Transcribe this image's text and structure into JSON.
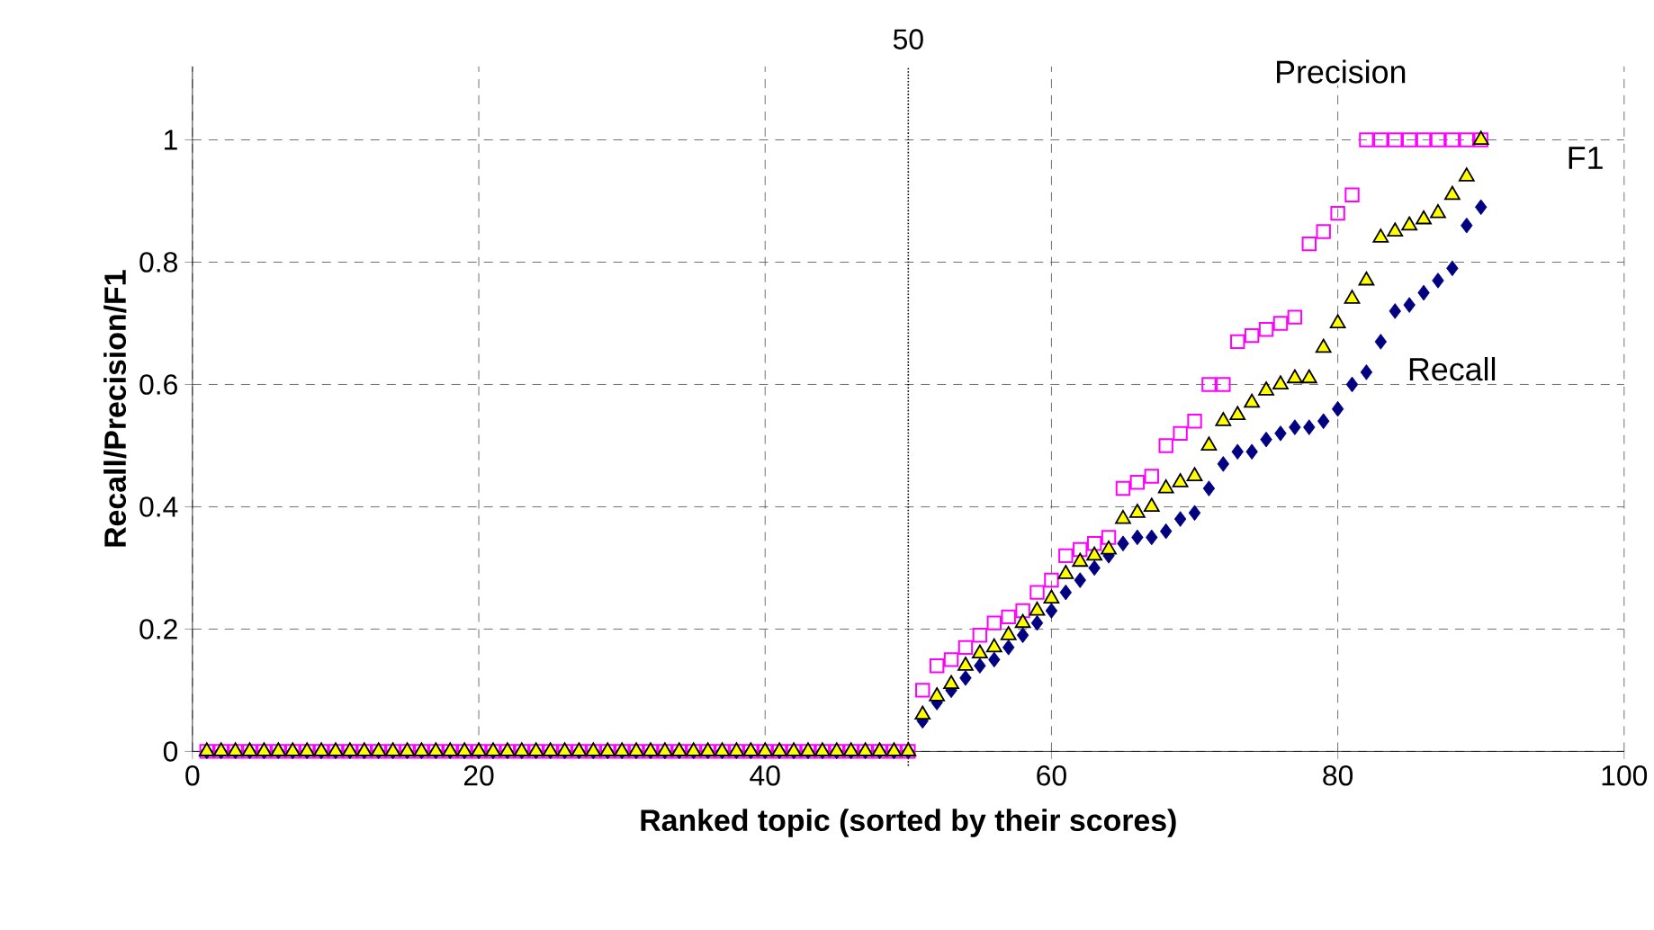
{
  "chart_data": {
    "type": "scatter",
    "xlabel": "Ranked topic (sorted by their scores)",
    "ylabel": "Recall/Precision/F1",
    "x": [
      1,
      2,
      3,
      4,
      5,
      6,
      7,
      8,
      9,
      10,
      11,
      12,
      13,
      14,
      15,
      16,
      17,
      18,
      19,
      20,
      21,
      22,
      23,
      24,
      25,
      26,
      27,
      28,
      29,
      30,
      31,
      32,
      33,
      34,
      35,
      36,
      37,
      38,
      39,
      40,
      41,
      42,
      43,
      44,
      45,
      46,
      47,
      48,
      49,
      50,
      51,
      52,
      53,
      54,
      55,
      56,
      57,
      58,
      59,
      60,
      61,
      62,
      63,
      64,
      65,
      66,
      67,
      68,
      69,
      70,
      71,
      72,
      73,
      74,
      75,
      76,
      77,
      78,
      79,
      80,
      81,
      82,
      83,
      84,
      85,
      86,
      87,
      88,
      89,
      90
    ],
    "series": [
      {
        "name": "Precision",
        "color": "#ff00ff",
        "marker": "square",
        "values": [
          0,
          0,
          0,
          0,
          0,
          0,
          0,
          0,
          0,
          0,
          0,
          0,
          0,
          0,
          0,
          0,
          0,
          0,
          0,
          0,
          0,
          0,
          0,
          0,
          0,
          0,
          0,
          0,
          0,
          0,
          0,
          0,
          0,
          0,
          0,
          0,
          0,
          0,
          0,
          0,
          0,
          0,
          0,
          0,
          0,
          0,
          0,
          0,
          0,
          0,
          0.1,
          0.14,
          0.15,
          0.17,
          0.19,
          0.21,
          0.22,
          0.23,
          0.26,
          0.28,
          0.32,
          0.33,
          0.34,
          0.35,
          0.43,
          0.44,
          0.45,
          0.5,
          0.52,
          0.54,
          0.6,
          0.6,
          0.67,
          0.68,
          0.69,
          0.7,
          0.71,
          0.83,
          0.85,
          0.88,
          0.91,
          1,
          1,
          1,
          1,
          1,
          1,
          1,
          1,
          1
        ]
      },
      {
        "name": "Recall",
        "color": "#000080",
        "marker": "diamond",
        "values": [
          0,
          0,
          0,
          0,
          0,
          0,
          0,
          0,
          0,
          0,
          0,
          0,
          0,
          0,
          0,
          0,
          0,
          0,
          0,
          0,
          0,
          0,
          0,
          0,
          0,
          0,
          0,
          0,
          0,
          0,
          0,
          0,
          0,
          0,
          0,
          0,
          0,
          0,
          0,
          0,
          0,
          0,
          0,
          0,
          0,
          0,
          0,
          0,
          0,
          0,
          0.05,
          0.08,
          0.1,
          0.12,
          0.14,
          0.15,
          0.17,
          0.19,
          0.21,
          0.23,
          0.26,
          0.28,
          0.3,
          0.32,
          0.34,
          0.35,
          0.35,
          0.36,
          0.38,
          0.39,
          0.43,
          0.47,
          0.49,
          0.49,
          0.51,
          0.52,
          0.53,
          0.53,
          0.54,
          0.56,
          0.6,
          0.62,
          0.67,
          0.72,
          0.73,
          0.75,
          0.77,
          0.79,
          0.86,
          0.89
        ]
      },
      {
        "name": "F1",
        "color": "#ffff00",
        "marker": "triangle",
        "values": [
          0,
          0,
          0,
          0,
          0,
          0,
          0,
          0,
          0,
          0,
          0,
          0,
          0,
          0,
          0,
          0,
          0,
          0,
          0,
          0,
          0,
          0,
          0,
          0,
          0,
          0,
          0,
          0,
          0,
          0,
          0,
          0,
          0,
          0,
          0,
          0,
          0,
          0,
          0,
          0,
          0,
          0,
          0,
          0,
          0,
          0,
          0,
          0,
          0,
          0,
          0.06,
          0.09,
          0.11,
          0.14,
          0.16,
          0.17,
          0.19,
          0.21,
          0.23,
          0.25,
          0.29,
          0.31,
          0.32,
          0.33,
          0.38,
          0.39,
          0.4,
          0.43,
          0.44,
          0.45,
          0.5,
          0.54,
          0.55,
          0.57,
          0.59,
          0.6,
          0.61,
          0.61,
          0.66,
          0.7,
          0.74,
          0.77,
          0.84,
          0.85,
          0.86,
          0.87,
          0.88,
          0.91,
          0.94,
          1.0
        ]
      }
    ],
    "xlim": [
      0,
      100
    ],
    "xticks": [
      0,
      20,
      40,
      60,
      80,
      100
    ],
    "ylim": [
      0,
      1.12
    ],
    "yticks": [
      0,
      0.2,
      0.4,
      0.6,
      0.8,
      1
    ],
    "grid": true,
    "ref_lines": [
      {
        "axis": "x",
        "value": 50,
        "label": "50",
        "line_style": "dotted"
      }
    ]
  }
}
